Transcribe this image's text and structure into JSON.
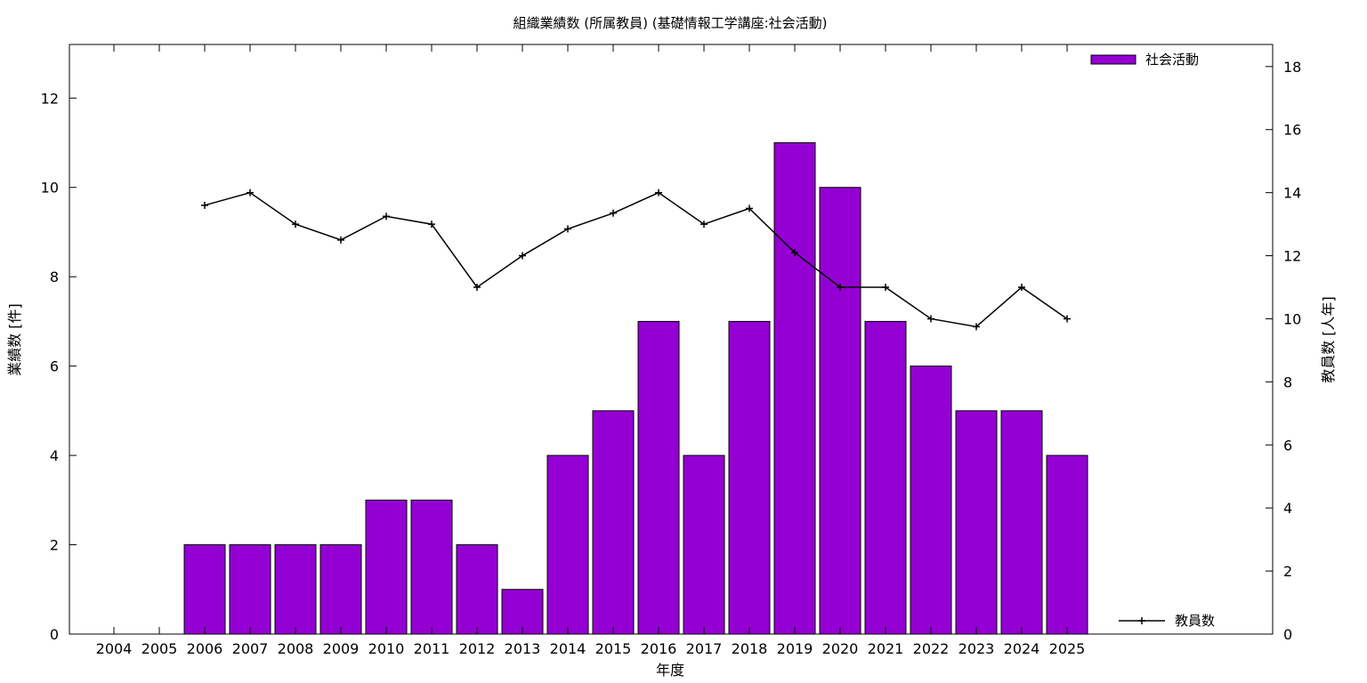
{
  "chart_data": {
    "type": "bar",
    "title": "組織業績数 (所属教員) (基礎情報工学講座:社会活動)",
    "xlabel": "年度",
    "ylabel": "業績数 [件]",
    "y2label": "教員数 [人年]",
    "categories": [
      "2004",
      "2005",
      "2006",
      "2007",
      "2008",
      "2009",
      "2010",
      "2011",
      "2012",
      "2013",
      "2014",
      "2015",
      "2016",
      "2017",
      "2018",
      "2019",
      "2020",
      "2021",
      "2022",
      "2023",
      "2024",
      "2025"
    ],
    "series": [
      {
        "name": "社会活動",
        "type": "bar",
        "axis": "left",
        "color": "#9400d3",
        "values": [
          null,
          null,
          2,
          2,
          2,
          2,
          3,
          3,
          2,
          1,
          4,
          5,
          7,
          4,
          7,
          11,
          10,
          7,
          6,
          5,
          5,
          4
        ]
      },
      {
        "name": "教員数",
        "type": "line",
        "axis": "right",
        "color": "#000000",
        "values": [
          null,
          null,
          13.6,
          14.0,
          13.0,
          12.5,
          13.25,
          13.0,
          11.0,
          12.0,
          12.85,
          13.35,
          14.0,
          13.0,
          13.5,
          12.1,
          11.0,
          11.0,
          10.0,
          9.75,
          11.0,
          10.0
        ]
      }
    ],
    "ylim": [
      0,
      13.2
    ],
    "yticks": [
      0,
      2,
      4,
      6,
      8,
      10,
      12
    ],
    "y2lim": [
      0,
      18.7
    ],
    "y2ticks": [
      0,
      2,
      4,
      6,
      8,
      10,
      12,
      14,
      16,
      18
    ],
    "grid": false,
    "legend": [
      "top-right",
      "bottom-right"
    ]
  }
}
